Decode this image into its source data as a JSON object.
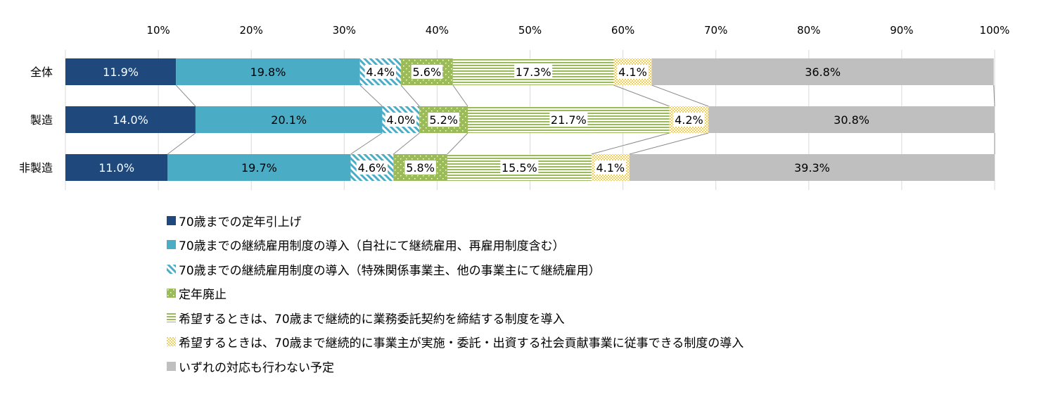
{
  "chart_data": {
    "type": "bar",
    "orientation": "horizontal",
    "stacked": true,
    "categories": [
      "全体",
      "製造",
      "非製造"
    ],
    "x_ticks": [
      "10%",
      "20%",
      "30%",
      "40%",
      "50%",
      "60%",
      "70%",
      "80%",
      "90%",
      "100%"
    ],
    "xlim": [
      0,
      100
    ],
    "grid": true,
    "legend_position": "bottom",
    "series": [
      {
        "name": "70歳までの定年引上げ",
        "values": [
          11.9,
          14.0,
          11.0
        ],
        "labels": [
          "11.9%",
          "14.0%",
          "11.0%"
        ],
        "color": "#1F497D",
        "pattern": "solid",
        "label_color": "#ffffff"
      },
      {
        "name": "70歳までの継続雇用制度の導入（自社にて継続雇用、再雇用制度含む）",
        "values": [
          19.8,
          20.1,
          19.7
        ],
        "labels": [
          "19.8%",
          "20.1%",
          "19.7%"
        ],
        "color": "#4BACC6",
        "pattern": "solid",
        "label_color": "#000000"
      },
      {
        "name": "70歳までの継続雇用制度の導入（特殊関係事業主、他の事業主にて継続雇用）",
        "values": [
          4.4,
          4.0,
          4.6
        ],
        "labels": [
          "4.4%",
          "4.0%",
          "4.6%"
        ],
        "color": "#4BACC6",
        "pattern": "diagonal",
        "label_color": "#000000"
      },
      {
        "name": "定年廃止",
        "values": [
          5.6,
          5.2,
          5.8
        ],
        "labels": [
          "5.6%",
          "5.2%",
          "5.8%"
        ],
        "color": "#9BBB59",
        "pattern": "dots",
        "label_color": "#000000"
      },
      {
        "name": "希望するときは、70歳まで継続的に業務委託契約を締結する制度を導入",
        "values": [
          17.3,
          21.7,
          15.5
        ],
        "labels": [
          "17.3%",
          "21.7%",
          "15.5%"
        ],
        "color": "#9BBB59",
        "pattern": "horizontal",
        "label_color": "#000000"
      },
      {
        "name": "希望するときは、70歳まで継続的に事業主が実施・委託・出資する社会貢献事業に従事できる制度の導入",
        "values": [
          4.1,
          4.2,
          4.1
        ],
        "labels": [
          "4.1%",
          "4.2%",
          "4.1%"
        ],
        "color": "#F2D05A",
        "pattern": "checker",
        "label_color": "#000000"
      },
      {
        "name": "いずれの対応も行わない予定",
        "values": [
          36.8,
          30.8,
          39.3
        ],
        "labels": [
          "36.8%",
          "30.8%",
          "39.3%"
        ],
        "color": "#BFBFBF",
        "pattern": "solid",
        "label_color": "#000000"
      }
    ]
  }
}
